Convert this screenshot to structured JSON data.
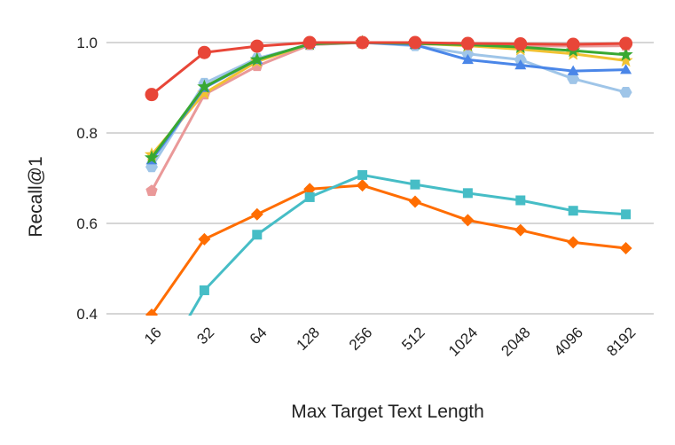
{
  "chart_data": {
    "type": "line",
    "xlabel": "Max Target Text Length",
    "ylabel": "Recall@1",
    "categories": [
      "16",
      "32",
      "64",
      "128",
      "256",
      "512",
      "1024",
      "2048",
      "4096",
      "8192"
    ],
    "ylim": [
      0.4,
      1.0
    ],
    "yticks": [
      "0.4",
      "0.6",
      "0.8",
      "1.0"
    ],
    "grid": "horizontal",
    "legend": "none",
    "series": [
      {
        "color": "#9fc5e8",
        "marker": "hexagon",
        "values": [
          0.725,
          0.91,
          0.965,
          0.995,
          1.0,
          0.993,
          0.975,
          0.962,
          0.92,
          0.89
        ]
      },
      {
        "color": "#ea9999",
        "marker": "pentagon",
        "values": [
          0.672,
          0.885,
          0.948,
          0.995,
          1.0,
          0.997,
          0.995,
          0.993,
          0.992,
          0.993
        ]
      },
      {
        "color": "#f1c232",
        "marker": "star",
        "values": [
          0.752,
          0.888,
          0.958,
          0.997,
          1.0,
          0.998,
          0.993,
          0.985,
          0.975,
          0.96
        ]
      },
      {
        "color": "#4a86e8",
        "marker": "triangle",
        "values": [
          0.74,
          0.9,
          0.962,
          0.997,
          1.0,
          0.995,
          0.962,
          0.95,
          0.937,
          0.94
        ]
      },
      {
        "color": "#38a832",
        "marker": "star",
        "values": [
          0.745,
          0.902,
          0.962,
          0.997,
          1.0,
          0.998,
          0.995,
          0.99,
          0.982,
          0.973
        ]
      },
      {
        "color": "#e84638",
        "marker": "circle",
        "values": [
          0.885,
          0.978,
          0.992,
          1.0,
          1.0,
          1.0,
          0.998,
          0.997,
          0.996,
          0.998
        ]
      },
      {
        "color": "#ff6d01",
        "marker": "diamond",
        "values": [
          0.398,
          0.565,
          0.62,
          0.676,
          0.684,
          0.648,
          0.607,
          0.585,
          0.558,
          0.545
        ]
      },
      {
        "color": "#46bdc6",
        "marker": "square",
        "values": [
          0.25,
          0.452,
          0.575,
          0.658,
          0.707,
          0.686,
          0.667,
          0.651,
          0.628,
          0.62
        ]
      }
    ]
  }
}
